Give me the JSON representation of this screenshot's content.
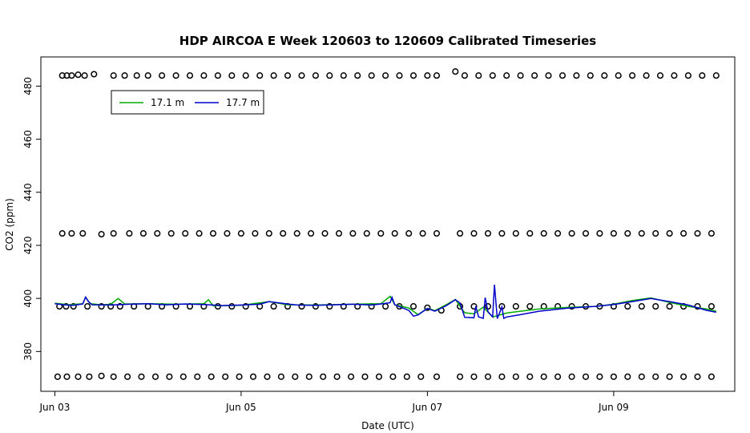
{
  "chart_data": {
    "type": "line",
    "title": "HDP AIRCOA E  Week 120603 to 120609  Calibrated Timeseries",
    "xlabel": "Date (UTC)",
    "ylabel": "CO2 (ppm)",
    "xlim": [
      -0.15,
      7.3
    ],
    "ylim": [
      365,
      491
    ],
    "x_ticks": [
      {
        "value": 0,
        "label": "Jun 03"
      },
      {
        "value": 2,
        "label": "Jun 05"
      },
      {
        "value": 4,
        "label": "Jun 07"
      },
      {
        "value": 6,
        "label": "Jun 09"
      }
    ],
    "y_ticks": [
      380,
      400,
      420,
      440,
      460,
      480
    ],
    "legend": {
      "position": "top-left",
      "entries": [
        {
          "label": "17.1 m",
          "color": "#00aa00"
        },
        {
          "label": "17.7 m",
          "color": "#0000cc"
        }
      ]
    },
    "series": [
      {
        "name": "17.1 m",
        "color": "#00aa00",
        "points": [
          [
            0.0,
            398.2
          ],
          [
            0.15,
            397.6
          ],
          [
            0.3,
            398.0
          ],
          [
            0.33,
            400.5
          ],
          [
            0.38,
            398.0
          ],
          [
            0.5,
            397.6
          ],
          [
            0.6,
            397.8
          ],
          [
            0.68,
            400.0
          ],
          [
            0.75,
            397.9
          ],
          [
            1.0,
            398.0
          ],
          [
            1.3,
            397.8
          ],
          [
            1.6,
            398.0
          ],
          [
            1.65,
            399.5
          ],
          [
            1.7,
            397.2
          ],
          [
            2.0,
            397.4
          ],
          [
            2.3,
            398.8
          ],
          [
            2.5,
            397.6
          ],
          [
            2.8,
            397.5
          ],
          [
            3.2,
            397.8
          ],
          [
            3.5,
            398.0
          ],
          [
            3.6,
            400.8
          ],
          [
            3.65,
            397.6
          ],
          [
            3.8,
            396.4
          ],
          [
            3.9,
            393.9
          ],
          [
            4.0,
            396.3
          ],
          [
            4.08,
            395.4
          ],
          [
            4.2,
            397.6
          ],
          [
            4.3,
            399.6
          ],
          [
            4.4,
            394.6
          ],
          [
            4.5,
            394.2
          ],
          [
            4.6,
            396.7
          ],
          [
            4.7,
            393.0
          ],
          [
            4.85,
            394.5
          ],
          [
            5.0,
            395.2
          ],
          [
            5.2,
            396.0
          ],
          [
            5.5,
            396.6
          ],
          [
            5.8,
            397.0
          ],
          [
            6.0,
            397.8
          ],
          [
            6.2,
            399.2
          ],
          [
            6.4,
            400.2
          ],
          [
            6.6,
            398.5
          ],
          [
            6.8,
            397.0
          ],
          [
            7.0,
            396.0
          ],
          [
            7.1,
            395.2
          ]
        ]
      },
      {
        "name": "17.7 m",
        "color": "#0000cc",
        "points": [
          [
            0.0,
            398.0
          ],
          [
            0.1,
            397.6
          ],
          [
            0.2,
            397.4
          ],
          [
            0.3,
            397.9
          ],
          [
            0.33,
            400.5
          ],
          [
            0.36,
            398.8
          ],
          [
            0.4,
            397.6
          ],
          [
            0.6,
            397.5
          ],
          [
            0.8,
            397.8
          ],
          [
            1.0,
            398.0
          ],
          [
            1.2,
            397.6
          ],
          [
            1.4,
            397.9
          ],
          [
            1.6,
            397.7
          ],
          [
            1.8,
            397.3
          ],
          [
            2.0,
            397.5
          ],
          [
            2.2,
            397.8
          ],
          [
            2.3,
            398.8
          ],
          [
            2.5,
            397.9
          ],
          [
            2.6,
            397.5
          ],
          [
            2.8,
            397.4
          ],
          [
            3.0,
            397.6
          ],
          [
            3.2,
            397.8
          ],
          [
            3.4,
            397.5
          ],
          [
            3.5,
            397.9
          ],
          [
            3.6,
            398.4
          ],
          [
            3.62,
            400.4
          ],
          [
            3.65,
            397.6
          ],
          [
            3.8,
            395.5
          ],
          [
            3.85,
            393.3
          ],
          [
            3.9,
            393.8
          ],
          [
            4.0,
            396.2
          ],
          [
            4.08,
            395.2
          ],
          [
            4.2,
            397.2
          ],
          [
            4.3,
            399.5
          ],
          [
            4.35,
            398.3
          ],
          [
            4.4,
            392.9
          ],
          [
            4.5,
            392.7
          ],
          [
            4.52,
            397.0
          ],
          [
            4.55,
            393.0
          ],
          [
            4.6,
            392.5
          ],
          [
            4.62,
            400.3
          ],
          [
            4.65,
            395.0
          ],
          [
            4.7,
            393.0
          ],
          [
            4.72,
            405.2
          ],
          [
            4.75,
            392.4
          ],
          [
            4.8,
            396.8
          ],
          [
            4.82,
            392.5
          ],
          [
            4.85,
            393.0
          ],
          [
            5.0,
            393.9
          ],
          [
            5.2,
            395.2
          ],
          [
            5.5,
            396.3
          ],
          [
            5.8,
            397.0
          ],
          [
            6.0,
            397.7
          ],
          [
            6.2,
            398.8
          ],
          [
            6.4,
            400.0
          ],
          [
            6.6,
            398.8
          ],
          [
            6.8,
            397.5
          ],
          [
            7.0,
            395.5
          ],
          [
            7.1,
            394.8
          ]
        ]
      },
      {
        "name": "",
        "markers": "circle",
        "points": [
          [
            0.08,
            484
          ],
          [
            0.13,
            484
          ],
          [
            0.18,
            484
          ],
          [
            0.25,
            484.3
          ],
          [
            0.32,
            484
          ],
          [
            0.42,
            484.5
          ],
          [
            0.63,
            484
          ],
          [
            0.75,
            484
          ],
          [
            0.88,
            484
          ],
          [
            1.0,
            484
          ],
          [
            1.15,
            484
          ],
          [
            1.3,
            484
          ],
          [
            1.45,
            484
          ],
          [
            1.6,
            484
          ],
          [
            1.75,
            484
          ],
          [
            1.9,
            484
          ],
          [
            2.05,
            484
          ],
          [
            2.2,
            484
          ],
          [
            2.35,
            484
          ],
          [
            2.5,
            484
          ],
          [
            2.65,
            484
          ],
          [
            2.8,
            484
          ],
          [
            2.95,
            484
          ],
          [
            3.1,
            484
          ],
          [
            3.25,
            484
          ],
          [
            3.4,
            484
          ],
          [
            3.55,
            484
          ],
          [
            3.7,
            484
          ],
          [
            3.85,
            484
          ],
          [
            4.0,
            484
          ],
          [
            4.1,
            484
          ],
          [
            4.3,
            485.5
          ],
          [
            4.4,
            484
          ],
          [
            4.55,
            484
          ],
          [
            4.7,
            484
          ],
          [
            4.85,
            484
          ],
          [
            5.0,
            484
          ],
          [
            5.15,
            484
          ],
          [
            5.3,
            484
          ],
          [
            5.45,
            484
          ],
          [
            5.6,
            484
          ],
          [
            5.75,
            484
          ],
          [
            5.9,
            484
          ],
          [
            6.05,
            484
          ],
          [
            6.2,
            484
          ],
          [
            6.35,
            484
          ],
          [
            6.5,
            484
          ],
          [
            6.65,
            484
          ],
          [
            6.8,
            484
          ],
          [
            6.95,
            484
          ],
          [
            7.1,
            484
          ],
          [
            0.08,
            424.5
          ],
          [
            0.18,
            424.5
          ],
          [
            0.3,
            424.5
          ],
          [
            0.5,
            424.2
          ],
          [
            0.63,
            424.5
          ],
          [
            0.8,
            424.5
          ],
          [
            0.95,
            424.5
          ],
          [
            1.1,
            424.5
          ],
          [
            1.25,
            424.5
          ],
          [
            1.4,
            424.5
          ],
          [
            1.55,
            424.5
          ],
          [
            1.7,
            424.5
          ],
          [
            1.85,
            424.5
          ],
          [
            2.0,
            424.5
          ],
          [
            2.15,
            424.5
          ],
          [
            2.3,
            424.5
          ],
          [
            2.45,
            424.5
          ],
          [
            2.6,
            424.5
          ],
          [
            2.75,
            424.5
          ],
          [
            2.9,
            424.5
          ],
          [
            3.05,
            424.5
          ],
          [
            3.2,
            424.5
          ],
          [
            3.35,
            424.5
          ],
          [
            3.5,
            424.5
          ],
          [
            3.65,
            424.5
          ],
          [
            3.8,
            424.5
          ],
          [
            3.95,
            424.5
          ],
          [
            4.1,
            424.5
          ],
          [
            4.35,
            424.5
          ],
          [
            4.5,
            424.5
          ],
          [
            4.65,
            424.5
          ],
          [
            4.8,
            424.5
          ],
          [
            4.95,
            424.5
          ],
          [
            5.1,
            424.5
          ],
          [
            5.25,
            424.5
          ],
          [
            5.4,
            424.5
          ],
          [
            5.55,
            424.5
          ],
          [
            5.7,
            424.5
          ],
          [
            5.85,
            424.5
          ],
          [
            6.0,
            424.5
          ],
          [
            6.15,
            424.5
          ],
          [
            6.3,
            424.5
          ],
          [
            6.45,
            424.5
          ],
          [
            6.6,
            424.5
          ],
          [
            6.75,
            424.5
          ],
          [
            6.9,
            424.5
          ],
          [
            7.05,
            424.5
          ],
          [
            0.05,
            397
          ],
          [
            0.12,
            397
          ],
          [
            0.2,
            397
          ],
          [
            0.35,
            397
          ],
          [
            0.5,
            397
          ],
          [
            0.6,
            397
          ],
          [
            0.7,
            397
          ],
          [
            0.85,
            397
          ],
          [
            1.0,
            397
          ],
          [
            1.15,
            397
          ],
          [
            1.3,
            397
          ],
          [
            1.45,
            397
          ],
          [
            1.6,
            397
          ],
          [
            1.75,
            397
          ],
          [
            1.9,
            397
          ],
          [
            2.05,
            397
          ],
          [
            2.2,
            397
          ],
          [
            2.35,
            397
          ],
          [
            2.5,
            397
          ],
          [
            2.65,
            397
          ],
          [
            2.8,
            397
          ],
          [
            2.95,
            397
          ],
          [
            3.1,
            397
          ],
          [
            3.25,
            397
          ],
          [
            3.4,
            397
          ],
          [
            3.55,
            397
          ],
          [
            3.7,
            397
          ],
          [
            3.85,
            397
          ],
          [
            4.0,
            396.5
          ],
          [
            4.15,
            395.5
          ],
          [
            4.35,
            397
          ],
          [
            4.5,
            397
          ],
          [
            4.65,
            397
          ],
          [
            4.8,
            397
          ],
          [
            4.95,
            397
          ],
          [
            5.1,
            397
          ],
          [
            5.25,
            397
          ],
          [
            5.4,
            397
          ],
          [
            5.55,
            397
          ],
          [
            5.7,
            397
          ],
          [
            5.85,
            397
          ],
          [
            6.0,
            397
          ],
          [
            6.15,
            397
          ],
          [
            6.3,
            397
          ],
          [
            6.45,
            397
          ],
          [
            6.6,
            397
          ],
          [
            6.75,
            397
          ],
          [
            6.9,
            397
          ],
          [
            7.05,
            397
          ],
          [
            0.03,
            370.5
          ],
          [
            0.13,
            370.5
          ],
          [
            0.25,
            370.5
          ],
          [
            0.37,
            370.5
          ],
          [
            0.5,
            370.8
          ],
          [
            0.63,
            370.5
          ],
          [
            0.78,
            370.5
          ],
          [
            0.93,
            370.5
          ],
          [
            1.08,
            370.5
          ],
          [
            1.23,
            370.5
          ],
          [
            1.38,
            370.5
          ],
          [
            1.53,
            370.5
          ],
          [
            1.68,
            370.5
          ],
          [
            1.83,
            370.5
          ],
          [
            1.98,
            370.5
          ],
          [
            2.13,
            370.5
          ],
          [
            2.28,
            370.5
          ],
          [
            2.43,
            370.5
          ],
          [
            2.58,
            370.5
          ],
          [
            2.73,
            370.5
          ],
          [
            2.88,
            370.5
          ],
          [
            3.03,
            370.5
          ],
          [
            3.18,
            370.5
          ],
          [
            3.33,
            370.5
          ],
          [
            3.48,
            370.5
          ],
          [
            3.63,
            370.5
          ],
          [
            3.78,
            370.5
          ],
          [
            3.93,
            370.5
          ],
          [
            4.1,
            370.5
          ],
          [
            4.35,
            370.5
          ],
          [
            4.5,
            370.5
          ],
          [
            4.65,
            370.5
          ],
          [
            4.8,
            370.5
          ],
          [
            4.95,
            370.5
          ],
          [
            5.1,
            370.5
          ],
          [
            5.25,
            370.5
          ],
          [
            5.4,
            370.5
          ],
          [
            5.55,
            370.5
          ],
          [
            5.7,
            370.5
          ],
          [
            5.85,
            370.5
          ],
          [
            6.0,
            370.5
          ],
          [
            6.15,
            370.5
          ],
          [
            6.3,
            370.5
          ],
          [
            6.45,
            370.5
          ],
          [
            6.6,
            370.5
          ],
          [
            6.75,
            370.5
          ],
          [
            6.9,
            370.5
          ],
          [
            7.05,
            370.5
          ]
        ]
      }
    ]
  }
}
